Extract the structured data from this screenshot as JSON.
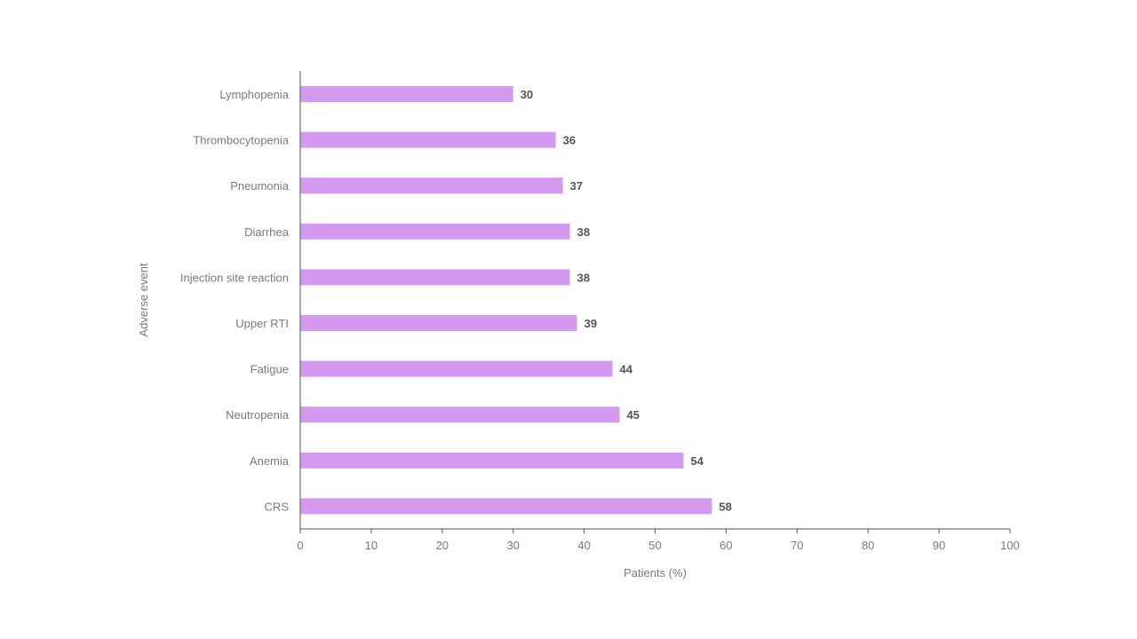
{
  "chart_data": {
    "type": "bar",
    "orientation": "horizontal",
    "title": "",
    "xlabel": "Patients (%)",
    "ylabel": "Adverse event",
    "xlim": [
      0,
      100
    ],
    "x_ticks": [
      0,
      10,
      20,
      30,
      40,
      50,
      60,
      70,
      80,
      90,
      100
    ],
    "grid": false,
    "legend": "none",
    "bar_color": "#d59aef",
    "categories": [
      "Lymphopenia",
      "Thrombocytopenia",
      "Pneumonia",
      "Diarrhea",
      "Injection site reaction",
      "Upper RTI",
      "Fatigue",
      "Neutropenia",
      "Anemia",
      "CRS"
    ],
    "values": [
      30,
      36,
      37,
      38,
      38,
      39,
      44,
      45,
      54,
      58
    ]
  }
}
